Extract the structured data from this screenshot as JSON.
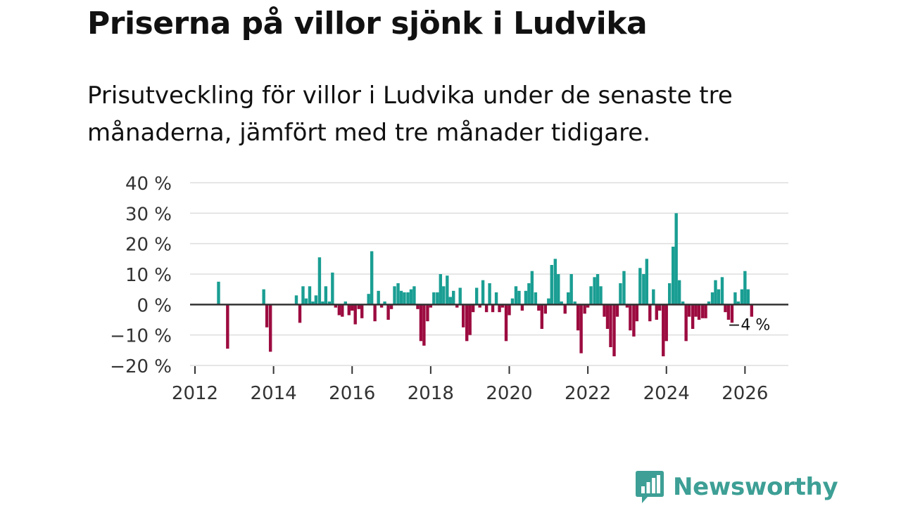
{
  "title": "Priserna på villor sjönk i Ludvika",
  "subtitle": "Prisutveckling för villor i Ludvika under de senaste tre månaderna, jämfört med tre månader tidigare.",
  "brand": {
    "name": "Newsworthy",
    "color": "#3d9f95"
  },
  "colors": {
    "positive": "#1a9e93",
    "negative": "#9c0b3f",
    "grid": "#dddddd",
    "zero_line": "#333333",
    "axis_text": "#333333"
  },
  "chart_data": {
    "type": "bar",
    "title": "Priserna på villor sjönk i Ludvika",
    "xlabel": "",
    "ylabel": "",
    "ylim": [
      -20,
      40
    ],
    "xlim": [
      2012,
      2026.8
    ],
    "y_ticks": [
      40,
      30,
      20,
      10,
      0,
      -10,
      -20
    ],
    "y_tick_labels": [
      "40 %",
      "30 %",
      "20 %",
      "10 %",
      "0 %",
      "−10 %",
      "−20 %"
    ],
    "x_ticks": [
      2012,
      2014,
      2016,
      2018,
      2020,
      2022,
      2024,
      2026
    ],
    "x_tick_labels": [
      "2012",
      "2014",
      "2016",
      "2018",
      "2020",
      "2022",
      "2024",
      "2026"
    ],
    "annotation": {
      "text": "−4 %",
      "x": 2026.1,
      "y": -4
    },
    "series": [
      {
        "name": "Prisutveckling",
        "x": [
          2012.6,
          2012.83,
          2013.75,
          2013.83,
          2013.92,
          2014.58,
          2014.67,
          2014.75,
          2014.83,
          2014.92,
          2015.0,
          2015.08,
          2015.17,
          2015.25,
          2015.33,
          2015.42,
          2015.5,
          2015.58,
          2015.67,
          2015.75,
          2015.83,
          2015.92,
          2016.0,
          2016.08,
          2016.17,
          2016.25,
          2016.42,
          2016.5,
          2016.58,
          2016.67,
          2016.75,
          2016.83,
          2016.92,
          2017.0,
          2017.08,
          2017.17,
          2017.25,
          2017.33,
          2017.42,
          2017.5,
          2017.58,
          2017.67,
          2017.75,
          2017.83,
          2017.92,
          2018.0,
          2018.08,
          2018.17,
          2018.25,
          2018.33,
          2018.42,
          2018.5,
          2018.58,
          2018.67,
          2018.75,
          2018.83,
          2018.92,
          2019.0,
          2019.08,
          2019.17,
          2019.25,
          2019.33,
          2019.42,
          2019.5,
          2019.58,
          2019.67,
          2019.75,
          2019.83,
          2019.92,
          2020.0,
          2020.08,
          2020.17,
          2020.25,
          2020.33,
          2020.42,
          2020.5,
          2020.58,
          2020.67,
          2020.75,
          2020.83,
          2020.92,
          2021.0,
          2021.08,
          2021.17,
          2021.25,
          2021.33,
          2021.42,
          2021.5,
          2021.58,
          2021.67,
          2021.75,
          2021.83,
          2021.92,
          2022.0,
          2022.08,
          2022.17,
          2022.25,
          2022.33,
          2022.42,
          2022.5,
          2022.58,
          2022.67,
          2022.75,
          2022.83,
          2022.92,
          2023.0,
          2023.08,
          2023.17,
          2023.25,
          2023.33,
          2023.42,
          2023.5,
          2023.58,
          2023.67,
          2023.75,
          2023.83,
          2023.92,
          2024.0,
          2024.08,
          2024.17,
          2024.25,
          2024.33,
          2024.42,
          2024.5,
          2024.58,
          2024.67,
          2024.75,
          2024.83,
          2024.92,
          2025.0,
          2025.08,
          2025.17,
          2025.25,
          2025.33,
          2025.42,
          2025.5,
          2025.58,
          2025.67,
          2025.75,
          2025.83,
          2025.92,
          2026.0,
          2026.08,
          2026.17
        ],
        "values": [
          7.5,
          -14.5,
          5,
          -7.5,
          -15.5,
          3,
          -6,
          6,
          2,
          6,
          1,
          3,
          15.5,
          1,
          6,
          1,
          10.5,
          -1,
          -3.5,
          -4,
          1,
          -3.5,
          -2,
          -6.5,
          -1.5,
          -4.5,
          3.5,
          17.5,
          -5.5,
          4.5,
          -1,
          1,
          -5,
          -1.5,
          6,
          7,
          4.5,
          4,
          4,
          5,
          6,
          -1.5,
          -12,
          -13.5,
          -5.5,
          -1,
          4,
          4,
          10,
          6,
          9.5,
          2.5,
          4.5,
          -1,
          5.5,
          -7.5,
          -12,
          -10,
          -2.5,
          5.5,
          -1,
          8,
          -2.5,
          7,
          -2.5,
          4,
          -2.5,
          -1,
          -12,
          -3.5,
          2,
          6,
          4.5,
          -2,
          4.5,
          7,
          11,
          4,
          -2,
          -8,
          -3,
          2,
          13,
          15,
          10,
          1,
          -3,
          4,
          10,
          1,
          -8.5,
          -16,
          -3,
          -1,
          6,
          9,
          10,
          6,
          -4,
          -8,
          -14,
          -17,
          -4,
          7,
          11,
          -1,
          -8.5,
          -10.5,
          -5.5,
          12,
          10,
          15,
          -5.5,
          5,
          -5,
          -2,
          -17,
          -12,
          7,
          19,
          30,
          8,
          1,
          -12,
          -4,
          -8,
          -4,
          -5,
          -4.5,
          -4.5,
          1,
          4,
          8,
          5,
          9,
          -2.5,
          -5,
          -7,
          4,
          1,
          5,
          11,
          5,
          -4
        ]
      }
    ]
  }
}
